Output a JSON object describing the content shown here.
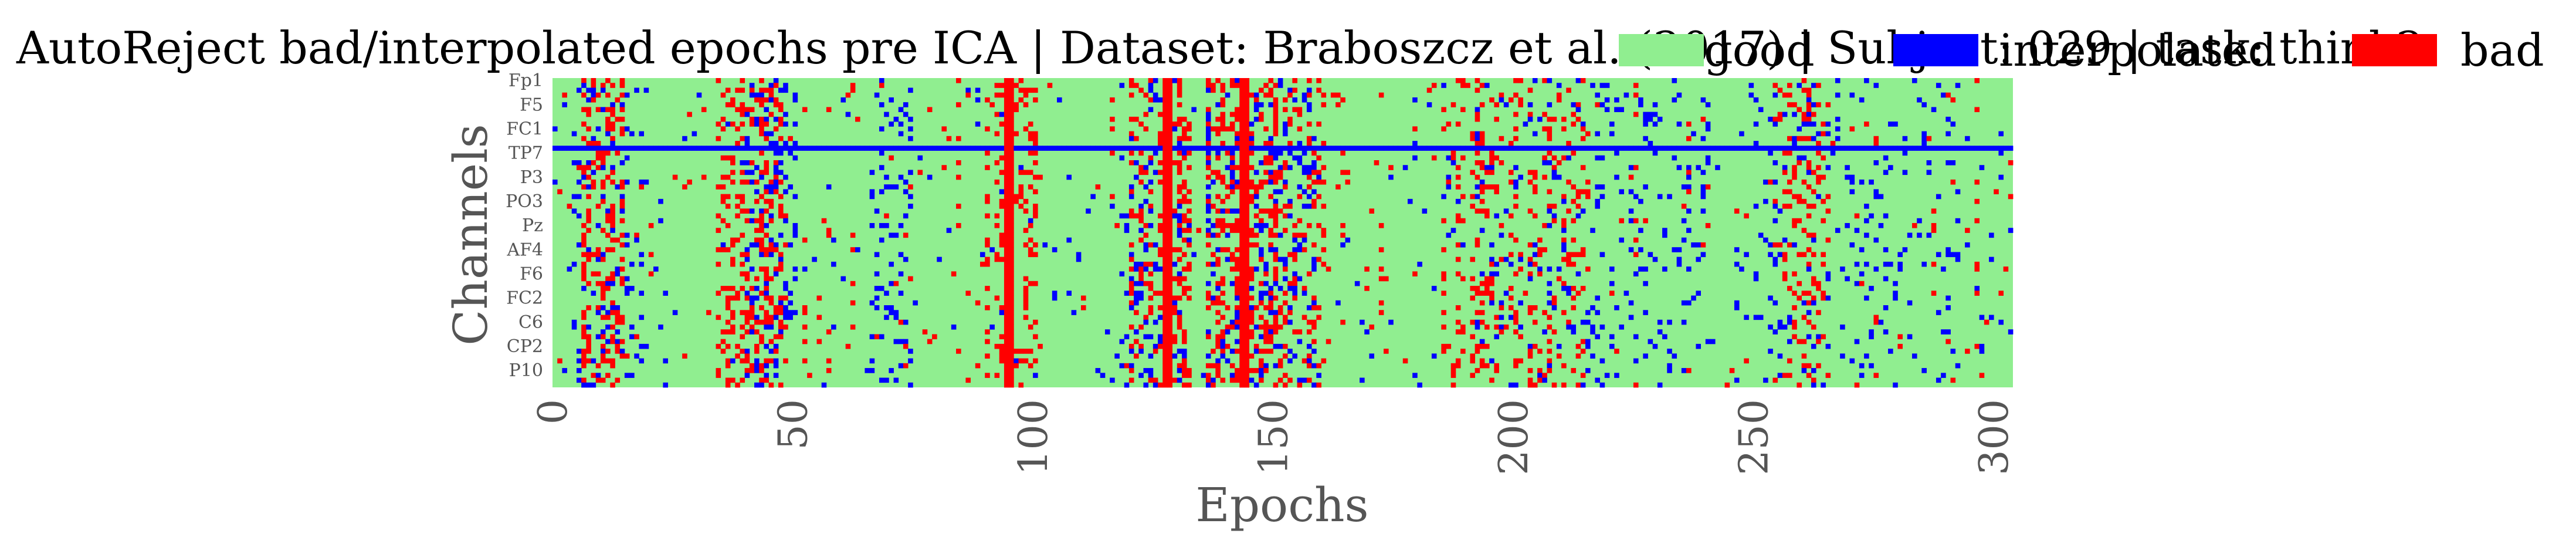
{
  "chart_data": {
    "type": "heatmap",
    "title": "AutoReject bad/interpolated epochs pre ICA | Dataset: Braboszcz et al. (2017) | Subject: 029 | task: think2",
    "xlabel": "Epochs",
    "ylabel": "Channels",
    "xlim": [
      0,
      304
    ],
    "n_epochs": 304,
    "n_channels": 64,
    "x_ticks": [
      "0",
      "50",
      "100",
      "150",
      "200",
      "250",
      "300"
    ],
    "y_tick_labels": [
      "Fp1",
      "F5",
      "FC1",
      "TP7",
      "P3",
      "PO3",
      "Pz",
      "AF4",
      "F6",
      "FC2",
      "C6",
      "CP2",
      "P10"
    ],
    "legend": [
      {
        "label": "good",
        "color": "#90ee90"
      },
      {
        "label": "interpolated",
        "color": "#0000ff"
      },
      {
        "label": "bad",
        "color": "#ff0000"
      }
    ],
    "legend_position": "top-right",
    "fully_bad_epochs": [
      94,
      95,
      127,
      128,
      143,
      144
    ],
    "interpolated_channel_rows": [
      14
    ],
    "bad_bands": [
      [
        6,
        14,
        0.55
      ],
      [
        34,
        48,
        0.5
      ],
      [
        90,
        100,
        0.35
      ],
      [
        120,
        132,
        0.45
      ],
      [
        136,
        150,
        0.6
      ],
      [
        150,
        160,
        0.3
      ],
      [
        185,
        215,
        0.25
      ],
      [
        255,
        265,
        0.3
      ]
    ],
    "interpolated_bands": [
      [
        4,
        18,
        0.3
      ],
      [
        40,
        50,
        0.4
      ],
      [
        66,
        74,
        0.3
      ],
      [
        118,
        130,
        0.3
      ],
      [
        136,
        158,
        0.35
      ],
      [
        192,
        240,
        0.2
      ],
      [
        246,
        292,
        0.15
      ]
    ]
  }
}
